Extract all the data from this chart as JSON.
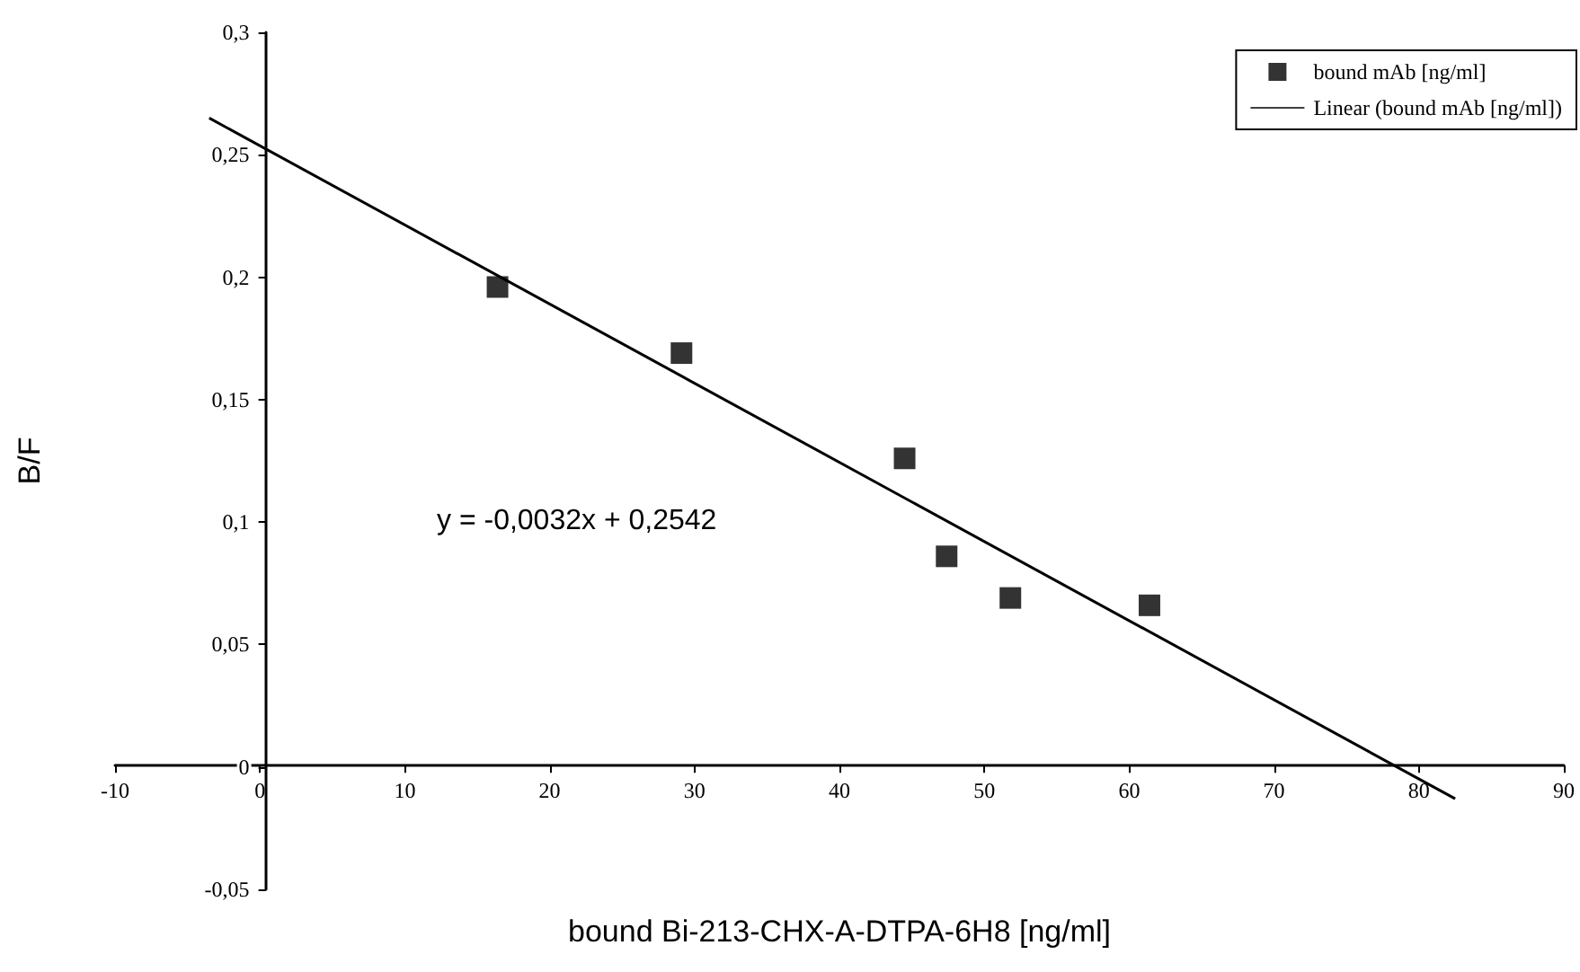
{
  "chart_data": {
    "type": "scatter",
    "xlabel": "bound Bi-213-CHX-A-DTPA-6H8 [ng/ml]",
    "ylabel": "B/F",
    "annotations": [
      "y = -0,0032x + 0,2542"
    ],
    "series": [
      {
        "name": "bound mAb [ng/ml]",
        "type": "scatter",
        "marker": "square",
        "color": "#000000",
        "x": [
          16.4,
          29.1,
          44.5,
          47.4,
          51.8,
          61.4
        ],
        "values": [
          0.196,
          0.169,
          0.126,
          0.086,
          0.069,
          0.066
        ]
      },
      {
        "name": "Linear (bound mAb [ng/ml])",
        "type": "line",
        "marker": "none",
        "line_style": "solid",
        "color": "#000000",
        "x": [
          -3.5,
          82.5
        ],
        "values": [
          0.265,
          -0.013
        ]
      }
    ],
    "xlim": [
      -10,
      90
    ],
    "xticks": [
      -10,
      0,
      10,
      20,
      30,
      40,
      50,
      60,
      70,
      80,
      90
    ],
    "ylim": [
      -0.05,
      0.3
    ],
    "yticks": [
      {
        "value": -0.05,
        "label": "-0,05"
      },
      {
        "value": 0,
        "label": "0"
      },
      {
        "value": 0.05,
        "label": "0,05"
      },
      {
        "value": 0.1,
        "label": "0,1"
      },
      {
        "value": 0.15,
        "label": "0,15"
      },
      {
        "value": 0.2,
        "label": "0,2"
      },
      {
        "value": 0.25,
        "label": "0,25"
      },
      {
        "value": 0.3,
        "label": "0,3"
      }
    ],
    "grid": false,
    "legend": "top right"
  }
}
